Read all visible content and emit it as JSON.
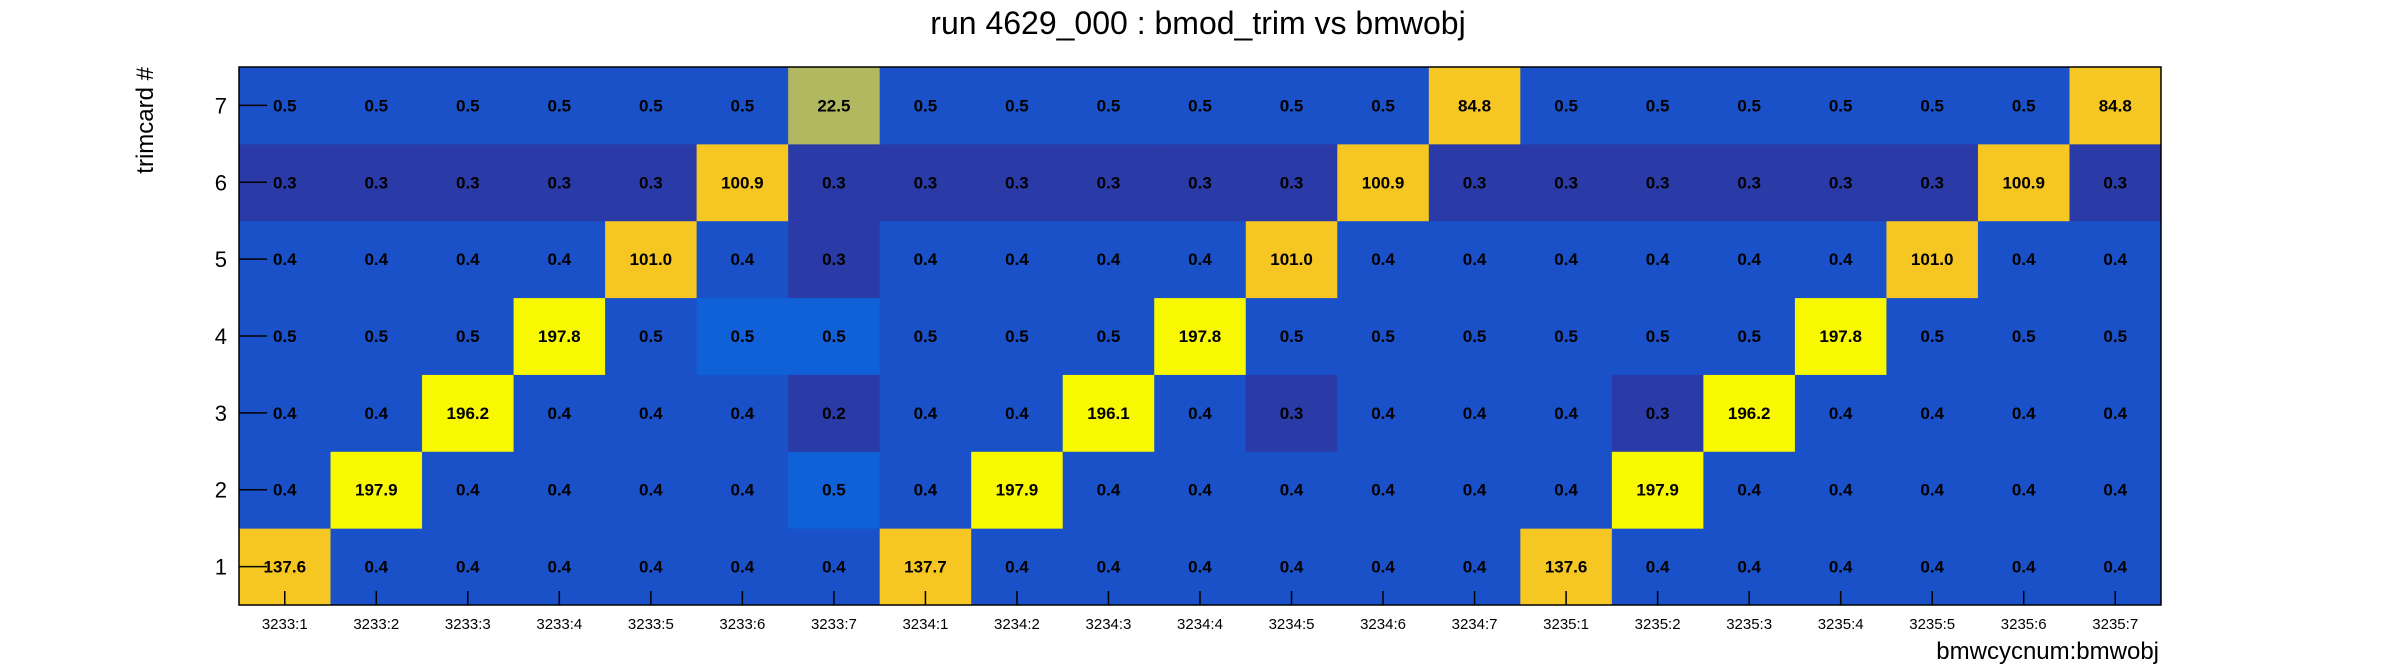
{
  "chart_data": {
    "type": "heatmap",
    "title": "run 4629_000 : bmod_trim vs bmwobj",
    "xlabel": "bmwcycnum:bmwobj",
    "ylabel": "trimcard #",
    "x_categories": [
      "3233:1",
      "3233:2",
      "3233:3",
      "3233:4",
      "3233:5",
      "3233:6",
      "3233:7",
      "3234:1",
      "3234:2",
      "3234:3",
      "3234:4",
      "3234:5",
      "3234:6",
      "3234:7",
      "3235:1",
      "3235:2",
      "3235:3",
      "3235:4",
      "3235:5",
      "3235:6",
      "3235:7"
    ],
    "y_categories": [
      "1",
      "2",
      "3",
      "4",
      "5",
      "6",
      "7"
    ],
    "values": [
      [
        137.6,
        0.4,
        0.4,
        0.4,
        0.4,
        0.4,
        0.4,
        137.7,
        0.4,
        0.4,
        0.4,
        0.4,
        0.4,
        0.4,
        137.6,
        0.4,
        0.4,
        0.4,
        0.4,
        0.4,
        0.4
      ],
      [
        0.4,
        197.9,
        0.4,
        0.4,
        0.4,
        0.4,
        0.5,
        0.4,
        197.9,
        0.4,
        0.4,
        0.4,
        0.4,
        0.4,
        0.4,
        197.9,
        0.4,
        0.4,
        0.4,
        0.4,
        0.4
      ],
      [
        0.4,
        0.4,
        196.2,
        0.4,
        0.4,
        0.4,
        0.2,
        0.4,
        0.4,
        196.1,
        0.4,
        0.3,
        0.4,
        0.4,
        0.4,
        0.3,
        196.2,
        0.4,
        0.4,
        0.4,
        0.4
      ],
      [
        0.5,
        0.5,
        0.5,
        197.8,
        0.5,
        0.5,
        0.5,
        0.5,
        0.5,
        0.5,
        197.8,
        0.5,
        0.5,
        0.5,
        0.5,
        0.5,
        0.5,
        197.8,
        0.5,
        0.5,
        0.5
      ],
      [
        0.4,
        0.4,
        0.4,
        0.4,
        101.0,
        0.4,
        0.3,
        0.4,
        0.4,
        0.4,
        0.4,
        101.0,
        0.4,
        0.4,
        0.4,
        0.4,
        0.4,
        0.4,
        101.0,
        0.4,
        0.4
      ],
      [
        0.3,
        0.3,
        0.3,
        0.3,
        0.3,
        100.9,
        0.3,
        0.3,
        0.3,
        0.3,
        0.3,
        0.3,
        100.9,
        0.3,
        0.3,
        0.3,
        0.3,
        0.3,
        0.3,
        100.9,
        0.3
      ],
      [
        0.5,
        0.5,
        0.5,
        0.5,
        0.5,
        0.5,
        22.5,
        0.5,
        0.5,
        0.5,
        0.5,
        0.5,
        0.5,
        84.8,
        0.5,
        0.5,
        0.5,
        0.5,
        0.5,
        0.5,
        84.8
      ]
    ],
    "value_format": "one-decimal",
    "colors": {
      "very_low": "#2a3ba8",
      "low": "#1a50c8",
      "low_mid": "#1060d8",
      "mid": "#b0b860",
      "high": "#f6c623",
      "very_high": "#f8f800"
    },
    "grid": false,
    "legend": "none"
  }
}
